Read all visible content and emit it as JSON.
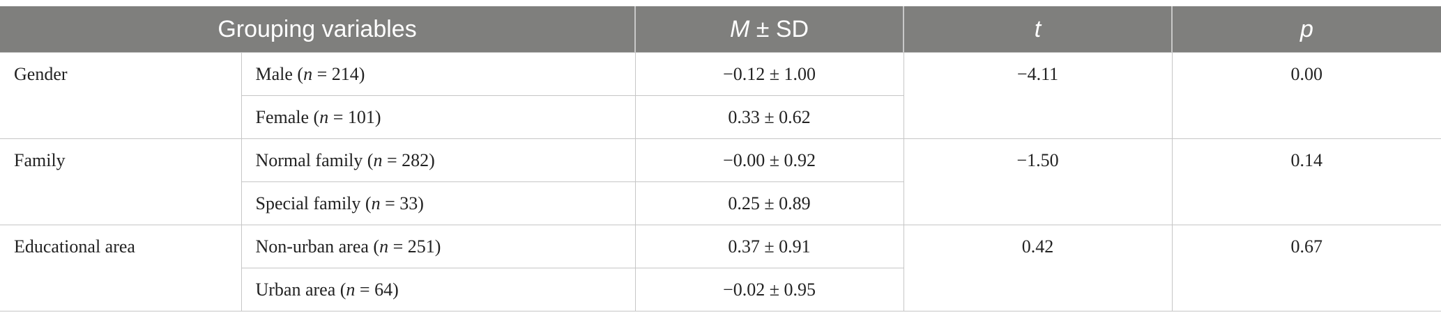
{
  "header": {
    "grouping": "Grouping variables",
    "msd_m": "M",
    "msd_rest": " ± SD",
    "t": "t",
    "p": "p"
  },
  "rows": [
    {
      "group": "Gender",
      "t": "−4.11",
      "p": "0.00",
      "subs": [
        {
          "label": "Male (",
          "n": "n",
          "count": " = 214)",
          "msd": "−0.12 ± 1.00"
        },
        {
          "label": "Female (",
          "n": "n",
          "count": " = 101)",
          "msd": "0.33 ± 0.62"
        }
      ]
    },
    {
      "group": "Family",
      "t": "−1.50",
      "p": "0.14",
      "subs": [
        {
          "label": "Normal family (",
          "n": "n",
          "count": " = 282)",
          "msd": "−0.00 ± 0.92"
        },
        {
          "label": "Special family (",
          "n": "n",
          "count": " = 33)",
          "msd": "0.25 ± 0.89"
        }
      ]
    },
    {
      "group": "Educational area",
      "t": "0.42",
      "p": "0.67",
      "subs": [
        {
          "label": "Non-urban area (",
          "n": "n",
          "count": " = 251)",
          "msd": "0.37 ± 0.91"
        },
        {
          "label": "Urban area (",
          "n": "n",
          "count": " = 64)",
          "msd": "−0.02 ± 0.95"
        }
      ]
    }
  ]
}
